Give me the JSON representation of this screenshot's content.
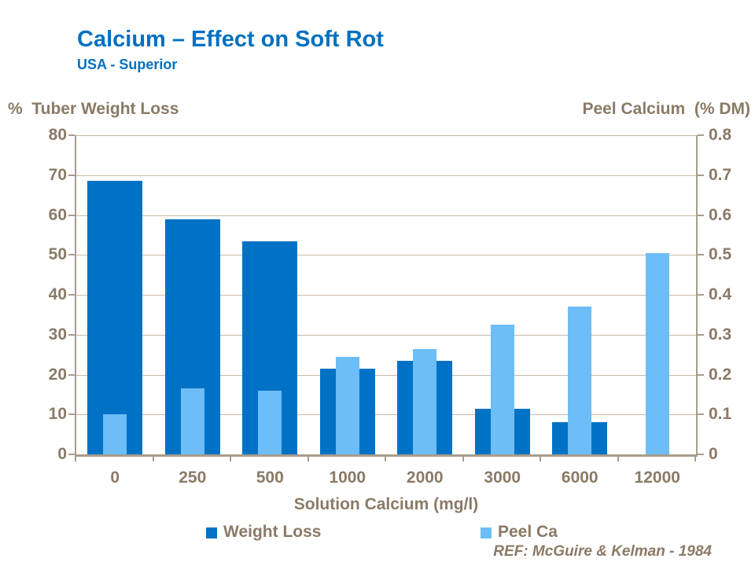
{
  "header": {
    "title": "Calcium – Effect on Soft Rot",
    "subtitle": "USA - Superior"
  },
  "footer": {
    "reference": "REF: McGuire & Kelman - 1984"
  },
  "colors": {
    "title_blue": "#0070C0",
    "weight_loss_bar": "#0072C6",
    "peel_ca_bar": "#6CBDF8",
    "axis_text": "#8A7A66",
    "gridline": "#C6BAAC",
    "axis_line": "#A89C8B"
  },
  "chart_data": {
    "type": "bar",
    "title": "Calcium – Effect on Soft Rot",
    "subtitle": "USA - Superior",
    "categories": [
      "0",
      "250",
      "500",
      "1000",
      "2000",
      "3000",
      "6000",
      "12000"
    ],
    "xlabel": "Solution Calcium (mg/l)",
    "left_axis": {
      "header": "%  Tuber Weight Loss",
      "min": 0,
      "max": 80,
      "tick_step": 10,
      "tick_labels": [
        "80",
        "70",
        "60",
        "50",
        "40",
        "30",
        "20",
        "10",
        "0"
      ]
    },
    "right_axis": {
      "header": "Peel Calcium  (% DM)",
      "min": 0,
      "max": 0.8,
      "tick_step": 0.1,
      "tick_labels": [
        "0.8",
        "0.7",
        "0.6",
        "0.5",
        "0.4",
        "0.3",
        "0.2",
        "0.1",
        "0"
      ]
    },
    "series": [
      {
        "name": "Weight Loss",
        "axis": "left",
        "color": "#0072C6",
        "values": [
          68.5,
          59,
          53.5,
          21.5,
          23.5,
          11.5,
          8,
          0
        ]
      },
      {
        "name": "Peel Ca",
        "axis": "right",
        "color": "#6CBDF8",
        "values": [
          0.1,
          0.165,
          0.16,
          0.245,
          0.265,
          0.325,
          0.37,
          0.505
        ]
      }
    ],
    "legend_position": "bottom",
    "grid": true
  }
}
